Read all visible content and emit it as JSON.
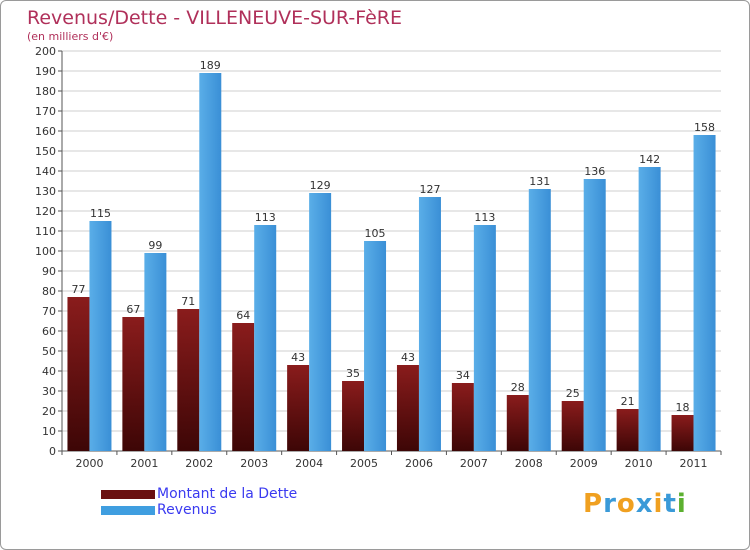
{
  "title": "Revenus/Dette - VILLENEUVE-SUR-FèRE",
  "subtitle": "(en milliers d'€)",
  "logo": {
    "letters": [
      "P",
      "r",
      "o",
      "x",
      "i",
      "t",
      "i"
    ],
    "colors": [
      "#f0a020",
      "#3a9ad8",
      "#f0a020",
      "#3a9ad8",
      "#f0a020",
      "#3a9ad8",
      "#5cb030"
    ]
  },
  "chart_data": {
    "type": "bar",
    "categories": [
      "2000",
      "2001",
      "2002",
      "2003",
      "2004",
      "2005",
      "2006",
      "2007",
      "2008",
      "2009",
      "2010",
      "2011"
    ],
    "series": [
      {
        "name": "Montant de la Dette",
        "values": [
          77,
          67,
          71,
          64,
          43,
          35,
          43,
          34,
          28,
          25,
          21,
          18
        ],
        "color": "#7a1616"
      },
      {
        "name": "Revenus",
        "values": [
          115,
          99,
          189,
          113,
          129,
          105,
          127,
          113,
          131,
          136,
          142,
          158
        ],
        "color": "#3f9ee0"
      }
    ],
    "ylim": [
      0,
      200
    ],
    "ytick_step": 10,
    "grid": true,
    "legend_position": "bottom-left"
  }
}
